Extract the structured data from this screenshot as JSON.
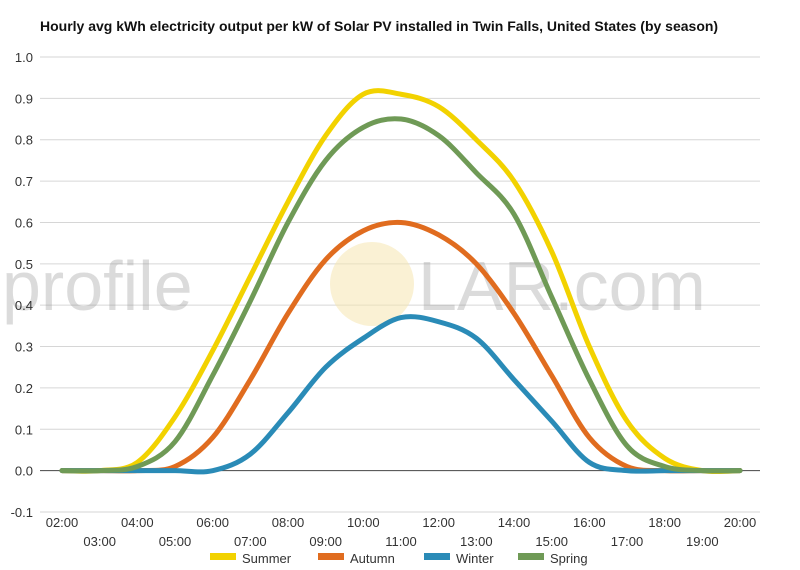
{
  "chart_data": {
    "type": "line",
    "title": "Hourly avg kWh electricity output per kW of Solar PV installed in Twin Falls, United States (by season)",
    "xlabel": "",
    "ylabel": "",
    "ylim": [
      -0.1,
      1.0
    ],
    "yticks": [
      "-0.1",
      "0.0",
      "0.1",
      "0.2",
      "0.3",
      "0.4",
      "0.5",
      "0.6",
      "0.7",
      "0.8",
      "0.9",
      "1.0"
    ],
    "xticks": [
      "02:00",
      "03:00",
      "04:00",
      "05:00",
      "06:00",
      "07:00",
      "08:00",
      "09:00",
      "10:00",
      "11:00",
      "12:00",
      "13:00",
      "14:00",
      "15:00",
      "16:00",
      "17:00",
      "18:00",
      "19:00",
      "20:00"
    ],
    "grid": true,
    "legend_position": "bottom",
    "watermark": {
      "left": "profile",
      "right": "LAR.com",
      "sun_color": "#f5e6b0"
    },
    "series": [
      {
        "name": "Summer",
        "color": "#f2d200",
        "values": [
          0.0,
          0.0,
          0.02,
          0.13,
          0.29,
          0.47,
          0.65,
          0.81,
          0.91,
          0.91,
          0.88,
          0.8,
          0.7,
          0.53,
          0.3,
          0.12,
          0.03,
          0.0,
          0.0
        ]
      },
      {
        "name": "Autumn",
        "color": "#e06c1f",
        "values": [
          0.0,
          0.0,
          0.0,
          0.01,
          0.08,
          0.22,
          0.38,
          0.51,
          0.58,
          0.6,
          0.57,
          0.5,
          0.38,
          0.23,
          0.08,
          0.01,
          0.0,
          0.0,
          0.0
        ]
      },
      {
        "name": "Winter",
        "color": "#2a8bb7",
        "values": [
          0.0,
          0.0,
          0.0,
          0.0,
          0.0,
          0.04,
          0.14,
          0.25,
          0.32,
          0.37,
          0.36,
          0.32,
          0.22,
          0.12,
          0.02,
          0.0,
          0.0,
          0.0,
          0.0
        ]
      },
      {
        "name": "Spring",
        "color": "#6f9a56",
        "values": [
          0.0,
          0.0,
          0.01,
          0.07,
          0.23,
          0.41,
          0.6,
          0.75,
          0.83,
          0.85,
          0.81,
          0.72,
          0.62,
          0.42,
          0.22,
          0.06,
          0.01,
          0.0,
          0.0
        ]
      }
    ]
  }
}
